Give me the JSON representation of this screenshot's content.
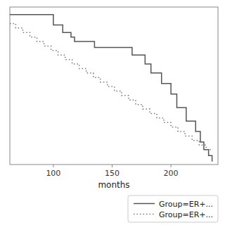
{
  "chart_data": {
    "type": "line",
    "xlabel": "months",
    "xlim": [
      63,
      240
    ],
    "ylim": [
      0.0,
      1.05
    ],
    "xticks": [
      100,
      150,
      200
    ],
    "tick_labels": "x",
    "grid": false,
    "legend": "lower right",
    "series": [
      {
        "name": "Group=ER+...",
        "color": "#555555",
        "line_style": "solid",
        "x": [
          63,
          100,
          100,
          108,
          108,
          115,
          115,
          118,
          118,
          135,
          135,
          167,
          167,
          178,
          178,
          183,
          183,
          192,
          192,
          200,
          200,
          205,
          205,
          213,
          213,
          221,
          221,
          225,
          225,
          228,
          228,
          232,
          232,
          235,
          235
        ],
        "values": [
          1.0,
          1.0,
          0.93,
          0.93,
          0.88,
          0.88,
          0.85,
          0.85,
          0.82,
          0.82,
          0.78,
          0.78,
          0.73,
          0.73,
          0.67,
          0.67,
          0.61,
          0.61,
          0.54,
          0.54,
          0.47,
          0.47,
          0.38,
          0.38,
          0.29,
          0.29,
          0.22,
          0.22,
          0.15,
          0.15,
          0.1,
          0.1,
          0.06,
          0.06,
          0.02
        ]
      },
      {
        "name": "Group=ER+...",
        "color": "#777777",
        "line_style": "dotted",
        "x": [
          63,
          68,
          68,
          74,
          74,
          80,
          80,
          86,
          86,
          92,
          92,
          98,
          98,
          104,
          104,
          110,
          110,
          116,
          116,
          122,
          122,
          128,
          128,
          134,
          134,
          140,
          140,
          146,
          146,
          152,
          152,
          158,
          158,
          164,
          164,
          170,
          170,
          176,
          176,
          182,
          182,
          188,
          188,
          194,
          194,
          200,
          200,
          206,
          206,
          212,
          212,
          218,
          218,
          224,
          224,
          230,
          230,
          235
        ],
        "values": [
          0.94,
          0.94,
          0.91,
          0.91,
          0.88,
          0.88,
          0.85,
          0.85,
          0.82,
          0.82,
          0.79,
          0.79,
          0.76,
          0.76,
          0.73,
          0.73,
          0.7,
          0.7,
          0.67,
          0.67,
          0.64,
          0.64,
          0.61,
          0.61,
          0.58,
          0.58,
          0.55,
          0.55,
          0.52,
          0.52,
          0.49,
          0.49,
          0.46,
          0.46,
          0.43,
          0.43,
          0.4,
          0.4,
          0.37,
          0.37,
          0.34,
          0.34,
          0.31,
          0.31,
          0.28,
          0.28,
          0.25,
          0.25,
          0.22,
          0.22,
          0.19,
          0.19,
          0.16,
          0.16,
          0.13,
          0.13,
          0.1,
          0.1
        ]
      }
    ]
  }
}
